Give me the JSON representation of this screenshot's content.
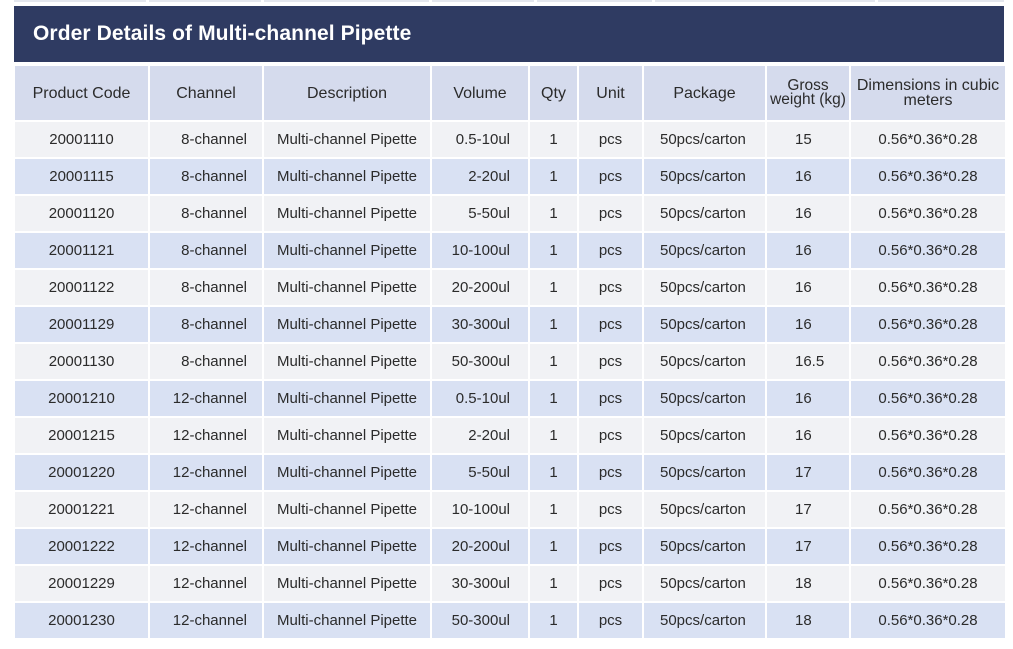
{
  "title": "Order Details of Multi-channel Pipette",
  "columns": [
    {
      "key": "code",
      "label": "Product Code"
    },
    {
      "key": "channel",
      "label": "Channel"
    },
    {
      "key": "description",
      "label": "Description"
    },
    {
      "key": "volume",
      "label": "Volume"
    },
    {
      "key": "qty",
      "label": "Qty"
    },
    {
      "key": "unit",
      "label": "Unit"
    },
    {
      "key": "package",
      "label": "Package"
    },
    {
      "key": "weight",
      "label": "Gross weight (kg)"
    },
    {
      "key": "dimensions",
      "label": "Dimensions in cubic meters"
    }
  ],
  "rows": [
    {
      "code": "20001110",
      "channel": "8-channel",
      "description": "Multi-channel Pipette",
      "volume": "0.5-10ul",
      "qty": "1",
      "unit": "pcs",
      "package": "50pcs/carton",
      "weight": "15",
      "dimensions": "0.56*0.36*0.28"
    },
    {
      "code": "20001115",
      "channel": "8-channel",
      "description": "Multi-channel Pipette",
      "volume": "2-20ul",
      "qty": "1",
      "unit": "pcs",
      "package": "50pcs/carton",
      "weight": "16",
      "dimensions": "0.56*0.36*0.28"
    },
    {
      "code": "20001120",
      "channel": "8-channel",
      "description": "Multi-channel Pipette",
      "volume": "5-50ul",
      "qty": "1",
      "unit": "pcs",
      "package": "50pcs/carton",
      "weight": "16",
      "dimensions": "0.56*0.36*0.28"
    },
    {
      "code": "20001121",
      "channel": "8-channel",
      "description": "Multi-channel Pipette",
      "volume": "10-100ul",
      "qty": "1",
      "unit": "pcs",
      "package": "50pcs/carton",
      "weight": "16",
      "dimensions": "0.56*0.36*0.28"
    },
    {
      "code": "20001122",
      "channel": "8-channel",
      "description": "Multi-channel Pipette",
      "volume": "20-200ul",
      "qty": "1",
      "unit": "pcs",
      "package": "50pcs/carton",
      "weight": "16",
      "dimensions": "0.56*0.36*0.28"
    },
    {
      "code": "20001129",
      "channel": "8-channel",
      "description": "Multi-channel Pipette",
      "volume": "30-300ul",
      "qty": "1",
      "unit": "pcs",
      "package": "50pcs/carton",
      "weight": "16",
      "dimensions": "0.56*0.36*0.28"
    },
    {
      "code": "20001130",
      "channel": "8-channel",
      "description": "Multi-channel Pipette",
      "volume": "50-300ul",
      "qty": "1",
      "unit": "pcs",
      "package": "50pcs/carton",
      "weight": "16.5",
      "dimensions": "0.56*0.36*0.28"
    },
    {
      "code": "20001210",
      "channel": "12-channel",
      "description": "Multi-channel Pipette",
      "volume": "0.5-10ul",
      "qty": "1",
      "unit": "pcs",
      "package": "50pcs/carton",
      "weight": "16",
      "dimensions": "0.56*0.36*0.28"
    },
    {
      "code": "20001215",
      "channel": "12-channel",
      "description": "Multi-channel Pipette",
      "volume": "2-20ul",
      "qty": "1",
      "unit": "pcs",
      "package": "50pcs/carton",
      "weight": "16",
      "dimensions": "0.56*0.36*0.28"
    },
    {
      "code": "20001220",
      "channel": "12-channel",
      "description": "Multi-channel Pipette",
      "volume": "5-50ul",
      "qty": "1",
      "unit": "pcs",
      "package": "50pcs/carton",
      "weight": "17",
      "dimensions": "0.56*0.36*0.28"
    },
    {
      "code": "20001221",
      "channel": "12-channel",
      "description": "Multi-channel Pipette",
      "volume": "10-100ul",
      "qty": "1",
      "unit": "pcs",
      "package": "50pcs/carton",
      "weight": "17",
      "dimensions": "0.56*0.36*0.28"
    },
    {
      "code": "20001222",
      "channel": "12-channel",
      "description": "Multi-channel Pipette",
      "volume": "20-200ul",
      "qty": "1",
      "unit": "pcs",
      "package": "50pcs/carton",
      "weight": "17",
      "dimensions": "0.56*0.36*0.28"
    },
    {
      "code": "20001229",
      "channel": "12-channel",
      "description": "Multi-channel Pipette",
      "volume": "30-300ul",
      "qty": "1",
      "unit": "pcs",
      "package": "50pcs/carton",
      "weight": "18",
      "dimensions": "0.56*0.36*0.28"
    },
    {
      "code": "20001230",
      "channel": "12-channel",
      "description": "Multi-channel Pipette",
      "volume": "50-300ul",
      "qty": "1",
      "unit": "pcs",
      "package": "50pcs/carton",
      "weight": "18",
      "dimensions": "0.56*0.36*0.28"
    }
  ],
  "colors": {
    "title_bar": "#2f3b62",
    "title_text": "#ffffff",
    "header_cell": "#d5dbed",
    "row_light": "#f1f2f5",
    "row_blue": "#d9e1f3"
  }
}
